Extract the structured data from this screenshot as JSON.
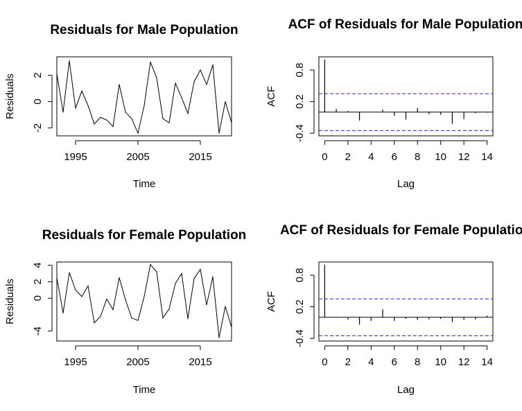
{
  "chart_data": [
    {
      "type": "line",
      "title": "Residuals for Male Population",
      "xlabel": "Time",
      "ylabel": "Residuals",
      "xlim": [
        1992,
        2020
      ],
      "ylim": [
        -2.6,
        3.4
      ],
      "x_ticks": [
        1995,
        2005,
        2015
      ],
      "y_ticks": [
        -2,
        0,
        2
      ],
      "x": [
        1992,
        1993,
        1994,
        1995,
        1996,
        1997,
        1998,
        1999,
        2000,
        2001,
        2002,
        2003,
        2004,
        2005,
        2006,
        2007,
        2008,
        2009,
        2010,
        2011,
        2012,
        2013,
        2014,
        2015,
        2016,
        2017,
        2018,
        2019,
        2020
      ],
      "values": [
        2.1,
        -0.8,
        3.1,
        -0.5,
        0.8,
        -0.3,
        -1.7,
        -1.2,
        -1.4,
        -1.9,
        1.3,
        -0.8,
        -1.3,
        -2.4,
        -0.3,
        3.0,
        1.8,
        -1.3,
        -1.6,
        1.4,
        0.3,
        -0.9,
        1.5,
        2.4,
        1.3,
        2.8,
        -2.4,
        0.0,
        -1.6
      ]
    },
    {
      "type": "bar",
      "title": "ACF of Residuals for Male Population",
      "xlabel": "Lag",
      "ylabel": "ACF",
      "xlim": [
        -0.5,
        14.5
      ],
      "ylim": [
        -0.45,
        1.05
      ],
      "x_ticks": [
        0,
        2,
        4,
        6,
        8,
        10,
        12,
        14
      ],
      "y_ticks": [
        -0.4,
        0.2,
        0.8
      ],
      "lags": [
        0,
        1,
        2,
        3,
        4,
        5,
        6,
        7,
        8,
        9,
        10,
        11,
        12,
        13,
        14
      ],
      "values": [
        1.0,
        0.06,
        0.02,
        -0.16,
        0.0,
        0.05,
        -0.07,
        -0.14,
        0.08,
        -0.04,
        -0.05,
        -0.22,
        -0.13,
        -0.02,
        -0.01
      ],
      "ci": 0.35
    },
    {
      "type": "line",
      "title": "Residuals for Female Population",
      "xlabel": "Time",
      "ylabel": "Residuals",
      "xlim": [
        1992,
        2020
      ],
      "ylim": [
        -5.2,
        4.4
      ],
      "x_ticks": [
        1995,
        2005,
        2015
      ],
      "y_ticks": [
        -4,
        0,
        2,
        4
      ],
      "x": [
        1992,
        1993,
        1994,
        1995,
        1996,
        1997,
        1998,
        1999,
        2000,
        2001,
        2002,
        2003,
        2004,
        2005,
        2006,
        2007,
        2008,
        2009,
        2010,
        2011,
        2012,
        2013,
        2014,
        2015,
        2016,
        2017,
        2018,
        2019,
        2020
      ],
      "values": [
        2.5,
        -1.8,
        3.1,
        1.0,
        0.2,
        1.5,
        -3.0,
        -2.2,
        -0.1,
        -1.4,
        2.5,
        -0.2,
        -2.4,
        -2.7,
        0.2,
        4.1,
        3.2,
        -2.4,
        -1.3,
        1.8,
        3.0,
        -2.5,
        2.4,
        3.5,
        -0.8,
        2.6,
        -4.8,
        -1.0,
        -3.5
      ]
    },
    {
      "type": "bar",
      "title": "ACF of Residuals for Female Population",
      "xlabel": "Lag",
      "ylabel": "ACF",
      "xlim": [
        -0.5,
        14.5
      ],
      "ylim": [
        -0.45,
        1.05
      ],
      "x_ticks": [
        0,
        2,
        4,
        6,
        8,
        10,
        12,
        14
      ],
      "y_ticks": [
        -0.4,
        0.2,
        0.8
      ],
      "lags": [
        0,
        1,
        2,
        3,
        4,
        5,
        6,
        7,
        8,
        9,
        10,
        11,
        12,
        13,
        14
      ],
      "values": [
        1.0,
        -0.01,
        -0.04,
        -0.14,
        -0.07,
        0.15,
        -0.07,
        -0.03,
        -0.05,
        -0.04,
        -0.03,
        -0.09,
        -0.05,
        -0.04,
        0.03
      ],
      "ci": 0.35
    }
  ]
}
